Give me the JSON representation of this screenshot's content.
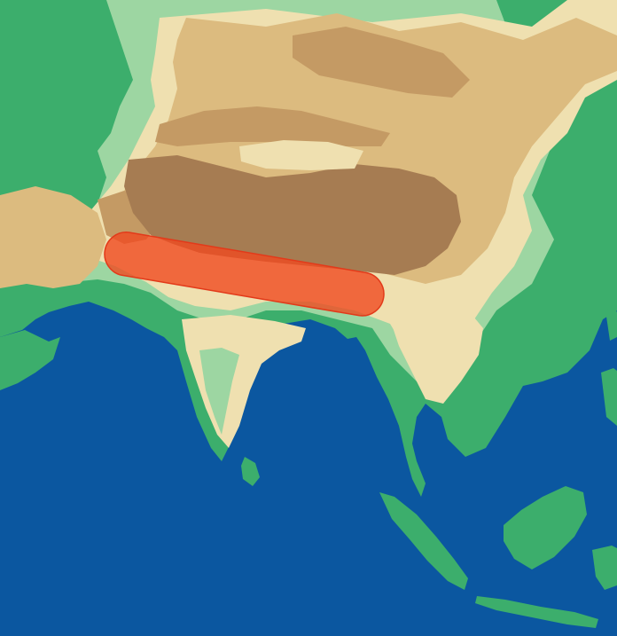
{
  "map": {
    "kind": "physical relief map",
    "labels": [],
    "colors": {
      "ocean": "#0b57a0",
      "lowland": "#3cae6c",
      "low_hills": "#9dd6a2",
      "hills": "#efe0b0",
      "highland": "#dcbb7f",
      "mountains": "#c49a64",
      "plateau": "#a67c52",
      "highlight_fill": "#f04a21",
      "highlight_stroke": "#e23a1a"
    },
    "highlight": {
      "shape": "capsule",
      "opacity": 0.8
    }
  }
}
